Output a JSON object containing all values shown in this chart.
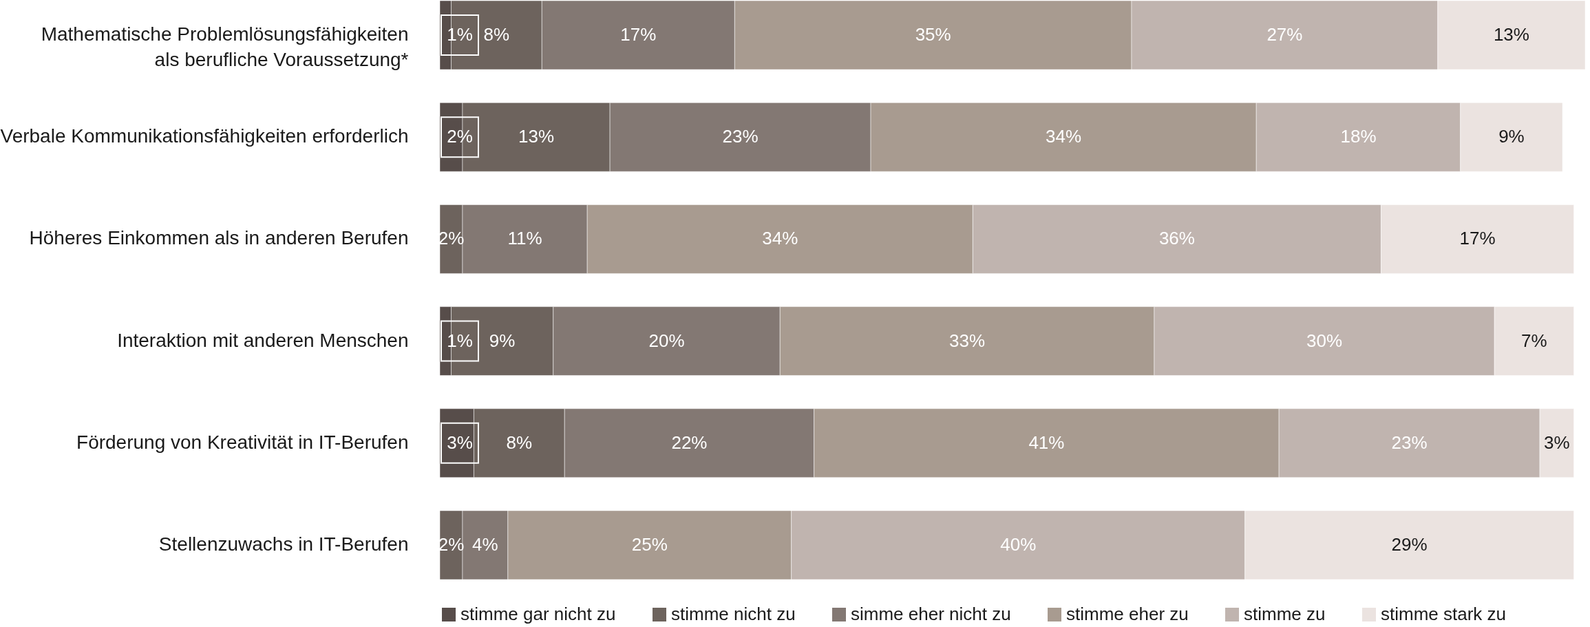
{
  "chart_data": {
    "type": "bar",
    "orientation": "horizontal",
    "stacked": true,
    "categories": [
      "Mathematische Problemlösungsfähigkeiten als berufliche Voraussetzung*",
      "Verbale Kommunikationsfähigkeiten erforderlich",
      "Höheres Einkommen als in anderen Berufen",
      "Interaktion mit anderen Menschen",
      "Förderung von Kreativität in IT-Berufen",
      "Stellenzuwachs in IT-Berufen"
    ],
    "xlim": [
      0,
      101
    ],
    "tick_labels": "y",
    "legend": "bottom",
    "series": [
      {
        "name": "stimme gar nicht zu",
        "color": "#574d4a",
        "values": [
          1,
          2,
          null,
          1,
          3,
          null
        ],
        "value_labels": [
          "1%",
          "2%",
          null,
          "1%",
          "3%",
          null
        ]
      },
      {
        "name": "stimme nicht zu",
        "color": "#6d635d",
        "values": [
          8,
          13,
          2,
          9,
          8,
          2
        ],
        "value_labels": [
          "8%",
          "13%",
          "2%",
          "9%",
          "8%",
          "2%"
        ]
      },
      {
        "name": "simme eher nicht zu",
        "color": "#837873",
        "values": [
          17,
          23,
          11,
          20,
          22,
          4
        ],
        "value_labels": [
          "17%",
          "23%",
          "11%",
          "20%",
          "22%",
          "4%"
        ]
      },
      {
        "name": "stimme eher zu",
        "color": "#a89b90",
        "values": [
          35,
          34,
          34,
          33,
          41,
          25
        ],
        "value_labels": [
          "35%",
          "34%",
          "34%",
          "33%",
          "41%",
          "25%"
        ]
      },
      {
        "name": "stimme zu",
        "color": "#c0b4af",
        "values": [
          27,
          18,
          36,
          30,
          23,
          40
        ],
        "value_labels": [
          "27%",
          "18%",
          "36%",
          "30%",
          "23%",
          "40%"
        ]
      },
      {
        "name": "stimme stark zu",
        "color": "#ebe3e0",
        "values": [
          13,
          9,
          17,
          7,
          3,
          29
        ],
        "value_labels": [
          "13%",
          "9%",
          "17%",
          "7%",
          "3%",
          "29%"
        ]
      }
    ]
  }
}
